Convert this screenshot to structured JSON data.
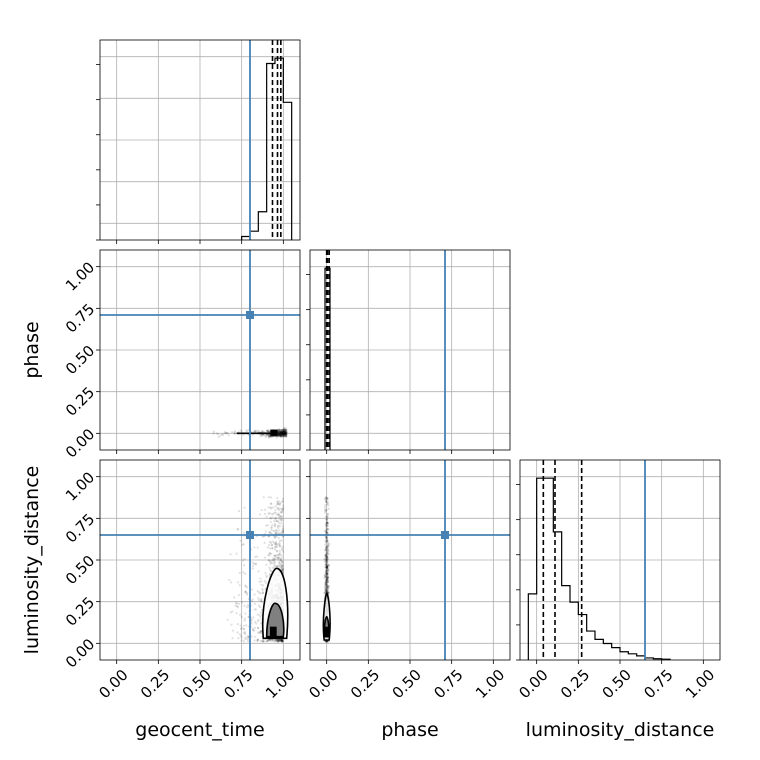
{
  "chart_data": {
    "type": "corner",
    "parameters": [
      "geocent_time",
      "phase",
      "luminosity_distance"
    ],
    "xlabels": [
      "geocent_time",
      "phase",
      "luminosity_distance"
    ],
    "ylabels": [
      "",
      "phase",
      "luminosity_distance"
    ],
    "tick_values": [
      0.0,
      0.25,
      0.5,
      0.75,
      1.0
    ],
    "tick_labels": [
      "0.00",
      "0.25",
      "0.50",
      "0.75",
      "1.00"
    ],
    "axis_range": [
      -0.1,
      1.1
    ],
    "grid": true,
    "truth_color": "#4682b4",
    "contour_color": "#000000",
    "truths": {
      "geocent_time": 0.8,
      "phase": 0.71,
      "luminosity_distance": 0.65
    },
    "quantiles": {
      "geocent_time": [
        0.935,
        0.965,
        0.985
      ],
      "phase": [
        0.0,
        0.005,
        0.015
      ],
      "luminosity_distance": [
        0.04,
        0.11,
        0.27
      ]
    },
    "histograms": {
      "geocent_time": {
        "edges": [
          0.75,
          0.8,
          0.85,
          0.9,
          0.95,
          1.0,
          1.05
        ],
        "values": [
          2,
          5,
          16,
          100,
          103,
          78
        ]
      },
      "phase": {
        "edges": [
          -0.01,
          0.005,
          0.02
        ],
        "values": [
          100,
          100
        ]
      },
      "luminosity_distance": {
        "edges": [
          -0.05,
          0.0,
          0.05,
          0.1,
          0.15,
          0.2,
          0.25,
          0.3,
          0.35,
          0.4,
          0.45,
          0.5,
          0.55,
          0.6,
          0.65,
          0.7,
          0.75,
          0.8
        ],
        "values": [
          16,
          44,
          44,
          31,
          18,
          14,
          11,
          7,
          5,
          4,
          3,
          2,
          1.5,
          1,
          0.5,
          0.3,
          0.2
        ]
      }
    },
    "samples_2d": {
      "phase_vs_geocent_time": {
        "x_range": [
          0.55,
          1.02
        ],
        "y_center": 0.0,
        "spread": 0.01
      },
      "luminosity_distance_vs_geocent_time": {
        "x_center": 0.95,
        "x_spread": 0.05,
        "y_peak": 0.07,
        "y_max": 0.88
      },
      "luminosity_distance_vs_phase": {
        "x_center": 0.0,
        "y_peak": 0.07,
        "y_max": 0.88
      }
    }
  }
}
